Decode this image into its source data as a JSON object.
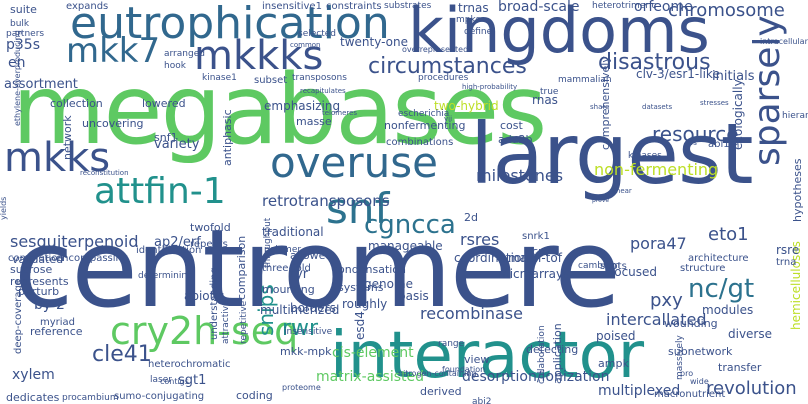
{
  "words": [
    {
      "text": "centromere",
      "color": "#3b528b"
    },
    {
      "text": "megabases",
      "color": "#5ec962"
    },
    {
      "text": "largest",
      "color": "#3b528b"
    },
    {
      "text": "kingdoms",
      "color": "#3b528b"
    },
    {
      "text": "interactor",
      "color": "#21918c"
    },
    {
      "text": "eutrophication",
      "color": "#31688e"
    },
    {
      "text": "mkkks",
      "color": "#3b528b"
    },
    {
      "text": "mkk7",
      "color": "#31688e"
    },
    {
      "text": "overuse",
      "color": "#31688e"
    },
    {
      "text": "snf",
      "color": "#2c728e"
    },
    {
      "text": "mkks",
      "color": "#3b528b"
    },
    {
      "text": "attfin-1",
      "color": "#21918c"
    },
    {
      "text": "cry2h-seq",
      "color": "#5ec962"
    },
    {
      "text": "sparsely",
      "color": "#3b528b"
    },
    {
      "text": "circumstances",
      "color": "#3b528b"
    },
    {
      "text": "disastrous",
      "color": "#3b528b"
    },
    {
      "text": "chromosome",
      "color": "#3b528b"
    },
    {
      "text": "cgncca",
      "color": "#2c728e"
    },
    {
      "text": "nc/gt",
      "color": "#2c728e"
    },
    {
      "text": "retrotransposons",
      "color": "#3b528b"
    },
    {
      "text": "sesquiterpenoid",
      "color": "#3b528b"
    },
    {
      "text": "milestones",
      "color": "#3b528b"
    },
    {
      "text": "non-fermenting",
      "color": "#bddf26"
    },
    {
      "text": "eto1",
      "color": "#3b528b"
    },
    {
      "text": "pora47",
      "color": "#3b528b"
    },
    {
      "text": "rsres",
      "color": "#3b528b"
    },
    {
      "text": "cle41",
      "color": "#3b528b"
    },
    {
      "text": "snips",
      "color": "#21918c"
    },
    {
      "text": "rwr",
      "color": "#21918c"
    },
    {
      "text": "recombinase",
      "color": "#3b528b"
    },
    {
      "text": "intercallated",
      "color": "#3b528b"
    },
    {
      "text": "pxy",
      "color": "#3b528b"
    },
    {
      "text": "revolution",
      "color": "#3b528b"
    },
    {
      "text": "matrix-assisted",
      "color": "#5ec962"
    },
    {
      "text": "desorption/ionization",
      "color": "#3b528b"
    },
    {
      "text": "multiplexed",
      "color": "#3b528b"
    },
    {
      "text": "resource",
      "color": "#3b528b"
    },
    {
      "text": "broad-scale",
      "color": "#3b528b"
    },
    {
      "text": "orfeome",
      "color": "#3b528b"
    },
    {
      "text": "trnas",
      "color": "#3b528b"
    },
    {
      "text": "twenty-one",
      "color": "#3b528b"
    },
    {
      "text": "p35s",
      "color": "#3b528b"
    },
    {
      "text": "en",
      "color": "#3b528b"
    },
    {
      "text": "ap2/erf",
      "color": "#3b528b"
    },
    {
      "text": "variety",
      "color": "#3b528b"
    },
    {
      "text": "assortment",
      "color": "#3b528b"
    },
    {
      "text": "by-2",
      "color": "#3b528b"
    },
    {
      "text": "xylem",
      "color": "#3b528b"
    },
    {
      "text": "dedicates",
      "color": "#3b528b"
    },
    {
      "text": "sgt1",
      "color": "#3b528b"
    },
    {
      "text": "coding",
      "color": "#3b528b"
    },
    {
      "text": "mkk-mpk",
      "color": "#3b528b"
    },
    {
      "text": "esd4",
      "color": "#3b528b"
    },
    {
      "text": "cis-element",
      "color": "#5ec962"
    },
    {
      "text": "multimerized",
      "color": "#3b528b"
    },
    {
      "text": "tyr",
      "color": "#3b528b"
    },
    {
      "text": "borders",
      "color": "#3b528b"
    },
    {
      "text": "roughly",
      "color": "#3b528b"
    },
    {
      "text": "genome",
      "color": "#3b528b"
    },
    {
      "text": "basis",
      "color": "#3b528b"
    },
    {
      "text": "systems",
      "color": "#3b528b"
    },
    {
      "text": "condensation",
      "color": "#3b528b"
    },
    {
      "text": "allowed",
      "color": "#3b528b"
    },
    {
      "text": "microarrays",
      "color": "#3b528b"
    },
    {
      "text": "manageable",
      "color": "#3b528b"
    },
    {
      "text": "coordination",
      "color": "#3b528b"
    },
    {
      "text": "traditional",
      "color": "#3b528b"
    },
    {
      "text": "twofold",
      "color": "#3b528b"
    },
    {
      "text": "sucrose",
      "color": "#3b528b"
    },
    {
      "text": "validated",
      "color": "#3b528b"
    },
    {
      "text": "represents",
      "color": "#3b528b"
    },
    {
      "text": "perturb",
      "color": "#3b528b"
    },
    {
      "text": "abiotic",
      "color": "#3b528b"
    },
    {
      "text": "emphasizing",
      "color": "#3b528b"
    },
    {
      "text": "two-hybrid",
      "color": "#bddf26"
    },
    {
      "text": "cost",
      "color": "#3b528b"
    },
    {
      "text": "ada2b",
      "color": "#3b528b"
    },
    {
      "text": "collection",
      "color": "#3b528b"
    },
    {
      "text": "lowered",
      "color": "#3b528b"
    },
    {
      "text": "uncovering",
      "color": "#3b528b"
    },
    {
      "text": "network",
      "color": "#3b528b"
    },
    {
      "text": "snf1",
      "color": "#3b528b"
    },
    {
      "text": "masse",
      "color": "#3b528b"
    },
    {
      "text": "antiphasic",
      "color": "#3b528b"
    },
    {
      "text": "subset",
      "color": "#3b528b"
    },
    {
      "text": "kinase1",
      "color": "#3b528b"
    },
    {
      "text": "transposons",
      "color": "#3b528b"
    },
    {
      "text": "nonfermenting",
      "color": "#3b528b"
    },
    {
      "text": "combinations",
      "color": "#3b528b"
    },
    {
      "text": "procedures",
      "color": "#3b528b"
    },
    {
      "text": "rnas",
      "color": "#3b528b"
    },
    {
      "text": "mammalian",
      "color": "#3b528b"
    },
    {
      "text": "initials",
      "color": "#3b528b"
    },
    {
      "text": "clv-3/esr1-like",
      "color": "#3b528b"
    },
    {
      "text": "comprehensively",
      "color": "#3b528b"
    },
    {
      "text": "ecologically",
      "color": "#3b528b"
    },
    {
      "text": "hypotheses",
      "color": "#3b528b"
    },
    {
      "text": "hemicelluloses",
      "color": "#bddf26"
    },
    {
      "text": "architecture",
      "color": "#3b528b"
    },
    {
      "text": "structure",
      "color": "#3b528b"
    },
    {
      "text": "spots",
      "color": "#3b528b"
    },
    {
      "text": "kinases",
      "color": "#3b528b"
    },
    {
      "text": "maldi-tof",
      "color": "#3b528b"
    },
    {
      "text": "focused",
      "color": "#3b528b"
    },
    {
      "text": "modules",
      "color": "#3b528b"
    },
    {
      "text": "diverse",
      "color": "#3b528b"
    },
    {
      "text": "wounding",
      "color": "#3b528b"
    },
    {
      "text": "poised",
      "color": "#3b528b"
    },
    {
      "text": "subnetwork",
      "color": "#3b528b"
    },
    {
      "text": "transfer",
      "color": "#3b528b"
    },
    {
      "text": "application",
      "color": "#3b528b"
    },
    {
      "text": "collaboration",
      "color": "#3b528b"
    },
    {
      "text": "detecting",
      "color": "#3b528b"
    },
    {
      "text": "ampk",
      "color": "#3b528b"
    },
    {
      "text": "view",
      "color": "#3b528b"
    },
    {
      "text": "derived",
      "color": "#3b528b"
    },
    {
      "text": "cre",
      "color": "#3b528b"
    },
    {
      "text": "2d",
      "color": "#3b528b"
    },
    {
      "text": "snrk1",
      "color": "#3b528b"
    },
    {
      "text": "rsre",
      "color": "#3b528b"
    },
    {
      "text": "trna",
      "color": "#3b528b"
    },
    {
      "text": "abi1",
      "color": "#3b528b"
    },
    {
      "text": "sumo-conjugating",
      "color": "#3b528b"
    },
    {
      "text": "procambium",
      "color": "#3b528b"
    },
    {
      "text": "contigs",
      "color": "#3b528b"
    },
    {
      "text": "proteome",
      "color": "#3b528b"
    },
    {
      "text": "understanding",
      "color": "#3b528b"
    },
    {
      "text": "comparison",
      "color": "#3b528b"
    },
    {
      "text": "mounting",
      "color": "#3b528b"
    },
    {
      "text": "attractive",
      "color": "#3b528b"
    },
    {
      "text": "repetitive",
      "color": "#3b528b"
    },
    {
      "text": "insensitive",
      "color": "#3b528b"
    },
    {
      "text": "three-fold",
      "color": "#3b528b"
    },
    {
      "text": "throughput",
      "color": "#3b528b"
    },
    {
      "text": "polymer",
      "color": "#3b528b"
    },
    {
      "text": "repeats",
      "color": "#3b528b"
    },
    {
      "text": "identification",
      "color": "#3b528b"
    },
    {
      "text": "determining",
      "color": "#3b528b"
    },
    {
      "text": "encompassing",
      "color": "#3b528b"
    },
    {
      "text": "completion",
      "color": "#3b528b"
    },
    {
      "text": "myriad",
      "color": "#3b528b"
    },
    {
      "text": "reference",
      "color": "#3b528b"
    },
    {
      "text": "deep-coverage",
      "color": "#3b528b"
    },
    {
      "text": "heterochromatic",
      "color": "#3b528b"
    },
    {
      "text": "laser",
      "color": "#3b528b"
    },
    {
      "text": "abi2",
      "color": "#3b528b"
    },
    {
      "text": "cambium",
      "color": "#3b528b"
    },
    {
      "text": "range",
      "color": "#3b528b"
    },
    {
      "text": "foundation",
      "color": "#3b528b"
    },
    {
      "text": "nitrogen-containing",
      "color": "#3b528b"
    },
    {
      "text": "macronutrient",
      "color": "#3b528b"
    },
    {
      "text": "massively",
      "color": "#3b528b"
    },
    {
      "text": "wide",
      "color": "#3b528b"
    },
    {
      "text": "pro",
      "color": "#3b528b"
    },
    {
      "text": "suite",
      "color": "#3b528b"
    },
    {
      "text": "expands",
      "color": "#3b528b"
    },
    {
      "text": "insensitive1",
      "color": "#3b528b"
    },
    {
      "text": "constraints",
      "color": "#3b528b"
    },
    {
      "text": "substrates",
      "color": "#3b528b"
    },
    {
      "text": "heterotrimeric",
      "color": "#3b528b"
    },
    {
      "text": "mpks",
      "color": "#3b528b"
    },
    {
      "text": "define",
      "color": "#3b528b"
    },
    {
      "text": "bulk",
      "color": "#3b528b"
    },
    {
      "text": "partners",
      "color": "#3b528b"
    },
    {
      "text": "selected",
      "color": "#3b528b"
    },
    {
      "text": "common",
      "color": "#3b528b"
    },
    {
      "text": "overrepresented",
      "color": "#3b528b"
    },
    {
      "text": "arranged",
      "color": "#3b528b"
    },
    {
      "text": "hook",
      "color": "#3b528b"
    },
    {
      "text": "yields",
      "color": "#3b528b"
    },
    {
      "text": "ethylene-overproducing",
      "color": "#3b528b"
    },
    {
      "text": "recapitulates",
      "color": "#3b528b"
    },
    {
      "text": "telomeres",
      "color": "#3b528b"
    },
    {
      "text": "escherichia",
      "color": "#3b528b"
    },
    {
      "text": "vii",
      "color": "#3b528b"
    },
    {
      "text": "true",
      "color": "#3b528b"
    },
    {
      "text": "share",
      "color": "#3b528b"
    },
    {
      "text": "datasets",
      "color": "#3b528b"
    },
    {
      "text": "stresses",
      "color": "#3b528b"
    },
    {
      "text": "intracellularly",
      "color": "#3b528b"
    },
    {
      "text": "hierarchy",
      "color": "#3b528b"
    },
    {
      "text": "tfs",
      "color": "#3b528b"
    },
    {
      "text": "high-probability",
      "color": "#3b528b"
    },
    {
      "text": "reconstitution",
      "color": "#3b528b"
    },
    {
      "text": "linear",
      "color": "#3b528b"
    },
    {
      "text": "prove",
      "color": "#3b528b"
    },
    {
      "text": "addition",
      "color": "#3b528b"
    }
  ]
}
